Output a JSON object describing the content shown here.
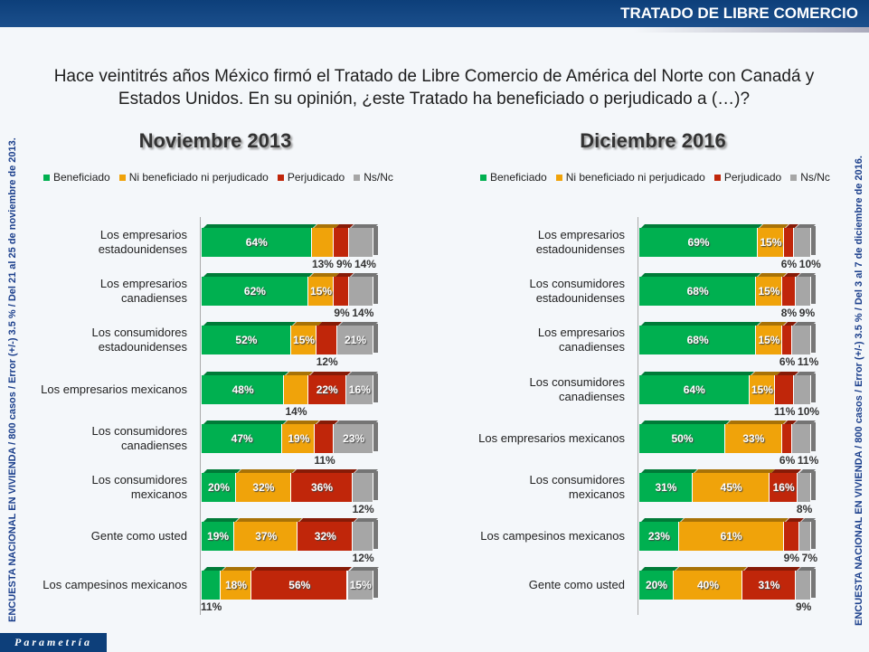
{
  "header": {
    "title": "TRATADO DE LIBRE COMERCIO"
  },
  "question": "Hace veintitrés años México firmó el Tratado de Libre Comercio de América del Norte con Canadá y Estados Unidos. En su opinión, ¿este Tratado ha beneficiado o perjudicado a (…)?",
  "side_left": "ENCUESTA NACIONAL EN VIVIENDA / 800 casos / Error (+/-) 3.5 % / Del 21 al 25 de noviembre de 2013.",
  "side_right": "ENCUESTA NACIONAL EN VIVIENDA / 800 casos / Error (+/-) 3.5 % / Del 3 al 7 de diciembre de 2016.",
  "logo": "Parametría",
  "colors": {
    "Beneficiado": "#00b050",
    "Ni beneficiado ni perjudicado": "#f0a30a",
    "Perjudicado": "#c0260a",
    "Ns/Nc": "#a6a6a6"
  },
  "chart_data": [
    {
      "type": "bar",
      "orientation": "horizontal",
      "stacked": true,
      "title": "Noviembre 2013",
      "legend": "top",
      "xlim": [
        0,
        100
      ],
      "series_names": [
        "Beneficiado",
        "Ni beneficiado ni perjudicado",
        "Perjudicado",
        "Ns/Nc"
      ],
      "categories": [
        "Los empresarios estadounidenses",
        "Los empresarios canadienses",
        "Los consumidores estadounidenses",
        "Los empresarios mexicanos",
        "Los consumidores canadienses",
        "Los consumidores mexicanos",
        "Gente como usted",
        "Los campesinos mexicanos"
      ],
      "values": [
        [
          64,
          13,
          9,
          14
        ],
        [
          62,
          15,
          9,
          14
        ],
        [
          52,
          15,
          12,
          21
        ],
        [
          48,
          14,
          22,
          16
        ],
        [
          47,
          19,
          11,
          23
        ],
        [
          20,
          32,
          36,
          12
        ],
        [
          19,
          37,
          32,
          12
        ],
        [
          11,
          18,
          56,
          15
        ]
      ]
    },
    {
      "type": "bar",
      "orientation": "horizontal",
      "stacked": true,
      "title": "Diciembre 2016",
      "legend": "top",
      "xlim": [
        0,
        100
      ],
      "series_names": [
        "Beneficiado",
        "Ni beneficiado ni perjudicado",
        "Perjudicado",
        "Ns/Nc"
      ],
      "categories": [
        "Los empresarios estadounidenses",
        "Los consumidores estadounidenses",
        "Los empresarios canadienses",
        "Los consumidores canadienses",
        "Los empresarios mexicanos",
        "Los consumidores mexicanos",
        "Los campesinos mexicanos",
        "Gente como usted"
      ],
      "values": [
        [
          69,
          15,
          6,
          10
        ],
        [
          68,
          15,
          8,
          9
        ],
        [
          68,
          15,
          6,
          11
        ],
        [
          64,
          15,
          11,
          10
        ],
        [
          50,
          33,
          6,
          11
        ],
        [
          31,
          45,
          16,
          8
        ],
        [
          23,
          61,
          9,
          7
        ],
        [
          20,
          40,
          31,
          9
        ]
      ]
    }
  ]
}
